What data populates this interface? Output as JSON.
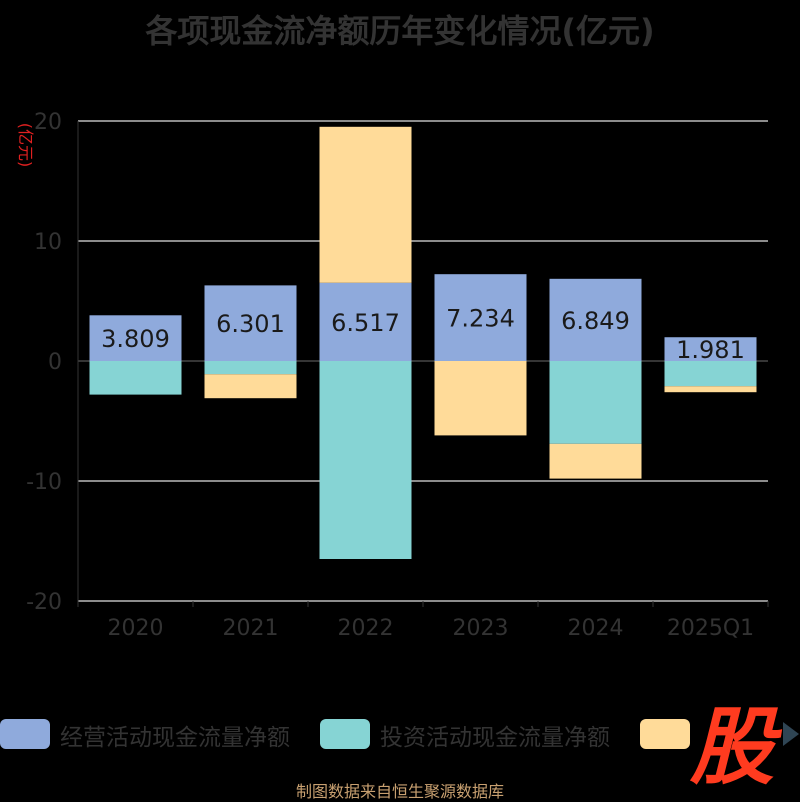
{
  "title": "各项现金流净额历年变化情况(亿元)",
  "source": "制图数据来自恒生聚源数据库",
  "logo_text": "股",
  "chart_data": {
    "type": "bar",
    "stacked": true,
    "title": "各项现金流净额历年变化情况(亿元)",
    "ylabel": "(亿元)",
    "ylim": [
      -20,
      20
    ],
    "yticks": [
      20,
      10,
      0,
      -10,
      -20
    ],
    "grid": true,
    "legend_position": "bottom",
    "categories": [
      "2020",
      "2021",
      "2022",
      "2023",
      "2024",
      "2025Q1"
    ],
    "series": [
      {
        "name": "经营活动现金流量净额",
        "color": "#8faadc",
        "values": [
          3.809,
          6.301,
          6.517,
          7.234,
          6.849,
          1.981
        ]
      },
      {
        "name": "投资活动现金流量净额",
        "color": "#86d4d4",
        "values": [
          -2.8,
          -1.1,
          -16.5,
          0,
          -6.9,
          -2.1
        ]
      },
      {
        "name": "",
        "color": "#ffdb99",
        "values": [
          0,
          -2.0,
          13.0,
          -6.2,
          -2.9,
          -0.5
        ]
      }
    ],
    "data_labels": [
      "3.809",
      "6.301",
      "6.517",
      "7.234",
      "6.849",
      "1.981"
    ]
  }
}
